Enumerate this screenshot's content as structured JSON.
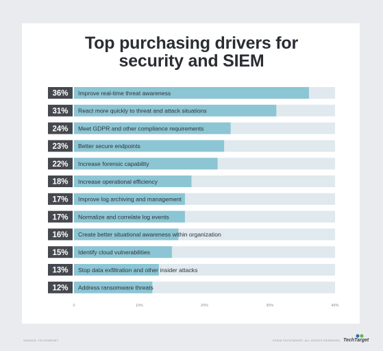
{
  "title_line1": "Top purchasing drivers for",
  "title_line2": "security and SIEM",
  "chart_data": {
    "type": "bar",
    "orientation": "horizontal",
    "title": "Top purchasing drivers for security and SIEM",
    "categories": [
      "Improve real-time threat awareness",
      "React more quickly to threat and attack situations",
      "Meet GDPR and other compliance requirements",
      "Better secure endpoints",
      "Increase forensic capability",
      "Increase operational efficiency",
      "Improve log archiving and management",
      "Normalize and correlate log events",
      "Create better situational awareness within organization",
      "Identify cloud vulnerabilities",
      "Stop data exfiltration and other insider attacks",
      "Address ransomware threats"
    ],
    "values": [
      36,
      31,
      24,
      23,
      22,
      18,
      17,
      17,
      16,
      15,
      13,
      12
    ],
    "value_labels": [
      "36%",
      "31%",
      "24%",
      "23%",
      "22%",
      "18%",
      "17%",
      "17%",
      "16%",
      "15%",
      "13%",
      "12%"
    ],
    "xlim": [
      0,
      40
    ],
    "x_ticks": [
      0,
      10,
      20,
      30,
      40
    ],
    "x_tick_labels": [
      "0",
      "10%",
      "20%",
      "30%",
      "40%"
    ],
    "grid": false,
    "colors": {
      "bar": "#8cc5d4",
      "track": "#dfe9ee",
      "label_box": "#45484e",
      "label_text": "#ffffff"
    }
  },
  "footer": {
    "source": "SOURCE: TECHTARGET",
    "copyright": "©2018 TECHTARGET. ALL RIGHTS RESERVED",
    "logo": "TechTarget"
  }
}
